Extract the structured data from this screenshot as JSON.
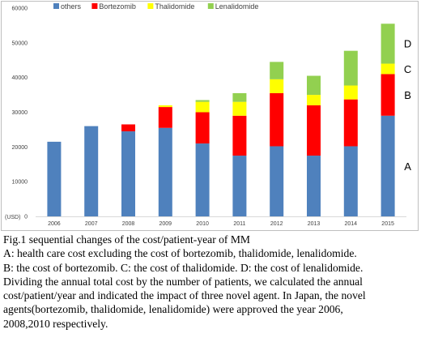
{
  "chart_data": {
    "type": "bar",
    "stacked": true,
    "categories": [
      "2006",
      "2007",
      "2008",
      "2009",
      "2010",
      "2011",
      "2012",
      "2013",
      "2014",
      "2015"
    ],
    "series": [
      {
        "name": "others",
        "color": "#4f81bd",
        "values": [
          21500,
          26000,
          24500,
          25500,
          21000,
          17500,
          20200,
          17500,
          20200,
          29000
        ]
      },
      {
        "name": "Bortezomib",
        "color": "#ff0000",
        "values": [
          0,
          0,
          2000,
          6000,
          9000,
          11500,
          15300,
          14500,
          13500,
          12000
        ]
      },
      {
        "name": "Thalidomide",
        "color": "#ffff00",
        "values": [
          0,
          0,
          0,
          500,
          3000,
          4000,
          4000,
          3000,
          4000,
          3000
        ]
      },
      {
        "name": "Lenalidomide",
        "color": "#92d050",
        "values": [
          0,
          0,
          0,
          0,
          500,
          2500,
          5000,
          5500,
          10000,
          11500
        ]
      }
    ],
    "y_ticks": [
      "0",
      "10000",
      "20000",
      "30000",
      "40000",
      "50000",
      "60000"
    ],
    "ylim": [
      0,
      60000
    ],
    "ylabel": "(USD)",
    "legend_position": "top-left",
    "grid": false,
    "segment_labels": [
      {
        "text": "A",
        "category": "2015",
        "value": 14500
      },
      {
        "text": "B",
        "category": "2015",
        "value": 35000
      },
      {
        "text": "C",
        "category": "2015",
        "value": 42500
      },
      {
        "text": "D",
        "category": "2015",
        "value": 49800
      }
    ]
  },
  "caption": {
    "lines": [
      "Fig.1 sequential changes of the cost/patient-year of MM",
      "A: health care cost excluding the cost of bortezomib, thalidomide, lenalidomide.",
      "B: the cost of bortezomib. C: the cost of thalidomide. D: the cost of lenalidomide.",
      "Dividing the annual total cost by the number of patients, we calculated the annual",
      "cost/patient/year and indicated the impact of three novel agent. In Japan, the novel",
      "agents(bortezomib, thalidomide, lenalidomide) were approved the year 2006,",
      "2008,2010 respectively."
    ]
  }
}
